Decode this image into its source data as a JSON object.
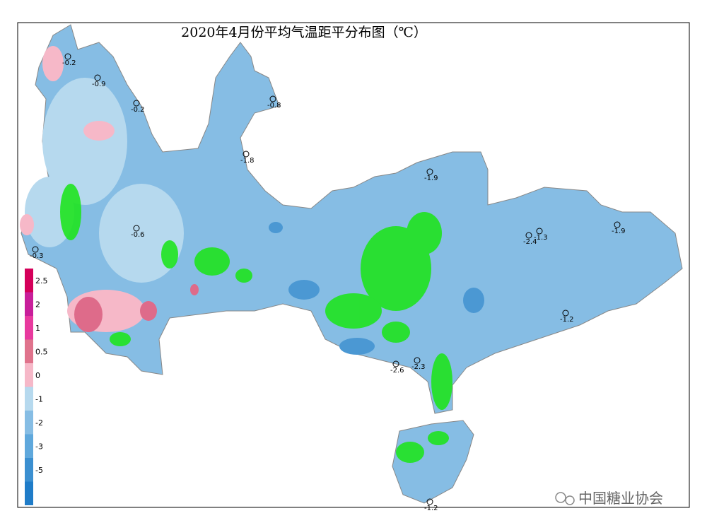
{
  "title": "2020年4月份平均气温距平分布图（℃）",
  "legend": {
    "levels": [
      2.5,
      2,
      1,
      0.5,
      0,
      -1,
      -2,
      -3,
      -5
    ]
  },
  "stations": [
    -0.2,
    -0.9,
    -0.2,
    -0.8,
    -1.8,
    -2.3,
    -2.6,
    -1.2,
    -1.9,
    -2.4,
    -1.3,
    -0.3,
    -0.6,
    -1.9,
    -1.2
  ],
  "watermark": "中国糖业协会"
}
